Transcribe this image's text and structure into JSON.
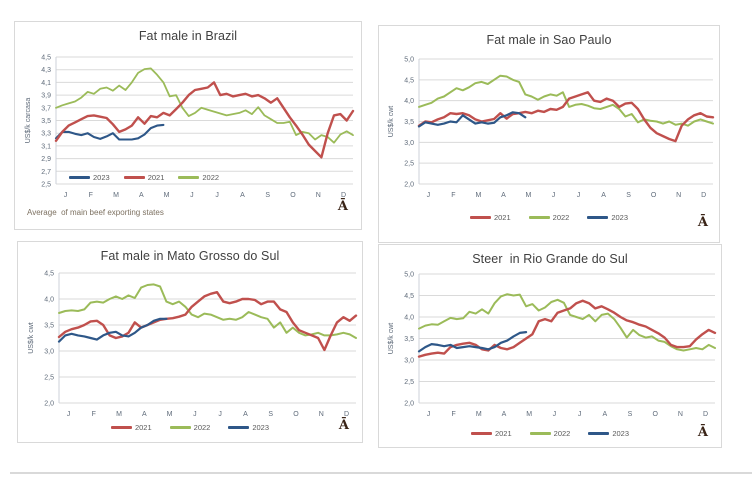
{
  "chart_data": [
    {
      "type": "line",
      "title": "Fat male in Brazil",
      "ylabel": "US$/k carcasa",
      "footnote": "Average  of main beef exporting states",
      "corner_glyph": "Ā",
      "x_categories": [
        "J",
        "F",
        "M",
        "A",
        "M",
        "J",
        "J",
        "A",
        "S",
        "O",
        "N",
        "D"
      ],
      "ylim": [
        2.5,
        4.5
      ],
      "ytick_values": [
        2.5,
        2.7,
        2.9,
        3.1,
        3.3,
        3.5,
        3.7,
        3.9,
        4.1,
        4.3,
        4.5
      ],
      "ytick_labels": [
        "2,5",
        "2,7",
        "2,9",
        "3,1",
        "3,3",
        "3,5",
        "3,7",
        "3,9",
        "4,1",
        "4,3",
        "4,5"
      ],
      "weeks_per_year": 48,
      "legend_position": "inside-bottom-left",
      "draw_order": [
        "2022",
        "2023",
        "2021"
      ],
      "series": [
        {
          "name": "2023",
          "color": "#2e5788",
          "width": 2.1,
          "values": [
            3.22,
            3.32,
            3.32,
            3.29,
            3.27,
            3.3,
            3.24,
            3.21,
            3.25,
            3.3,
            3.2,
            3.2,
            3.2,
            3.22,
            3.28,
            3.38,
            3.42,
            3.43
          ]
        },
        {
          "name": "2021",
          "color": "#c0504d",
          "width": 2.4,
          "values": [
            3.18,
            3.32,
            3.42,
            3.47,
            3.52,
            3.57,
            3.58,
            3.56,
            3.54,
            3.44,
            3.32,
            3.36,
            3.42,
            3.55,
            3.45,
            3.57,
            3.55,
            3.62,
            3.58,
            3.68,
            3.78,
            3.9,
            3.98,
            4.0,
            4.02,
            4.1,
            3.9,
            3.92,
            3.88,
            3.9,
            3.92,
            3.88,
            3.9,
            3.85,
            3.78,
            3.85,
            3.7,
            3.55,
            3.42,
            3.28,
            3.12,
            3.02,
            2.92,
            3.3,
            3.58,
            3.6,
            3.5,
            3.65
          ]
        },
        {
          "name": "2022",
          "color": "#9bbb59",
          "width": 1.8,
          "values": [
            3.7,
            3.74,
            3.77,
            3.8,
            3.86,
            3.95,
            3.92,
            4.0,
            4.02,
            3.97,
            4.05,
            3.98,
            4.1,
            4.25,
            4.31,
            4.32,
            4.22,
            4.1,
            3.88,
            3.9,
            3.7,
            3.57,
            3.62,
            3.7,
            3.67,
            3.64,
            3.61,
            3.58,
            3.6,
            3.62,
            3.66,
            3.6,
            3.71,
            3.58,
            3.52,
            3.46,
            3.46,
            3.48,
            3.27,
            3.32,
            3.3,
            3.2,
            3.27,
            3.24,
            3.15,
            3.28,
            3.33,
            3.27
          ]
        }
      ]
    },
    {
      "type": "line",
      "title": "Fat male in Sao Paulo",
      "ylabel": "US$/k cwt",
      "corner_glyph": "Ā",
      "x_categories": [
        "J",
        "F",
        "M",
        "A",
        "M",
        "J",
        "J",
        "A",
        "S",
        "O",
        "N",
        "D"
      ],
      "ylim": [
        2.0,
        5.0
      ],
      "ytick_values": [
        2.0,
        2.5,
        3.0,
        3.5,
        4.0,
        4.5,
        5.0
      ],
      "ytick_labels": [
        "2,0",
        "2,5",
        "3,0",
        "3,5",
        "4,0",
        "4,5",
        "5,0"
      ],
      "weeks_per_year": 48,
      "legend_position": "below-center",
      "draw_order": [
        "2022",
        "2021",
        "2023"
      ],
      "series": [
        {
          "name": "2021",
          "color": "#c0504d",
          "width": 2.4,
          "values": [
            3.4,
            3.5,
            3.48,
            3.55,
            3.6,
            3.7,
            3.68,
            3.7,
            3.65,
            3.55,
            3.5,
            3.53,
            3.56,
            3.7,
            3.57,
            3.68,
            3.7,
            3.73,
            3.7,
            3.76,
            3.73,
            3.8,
            3.78,
            3.85,
            4.05,
            4.1,
            4.15,
            4.2,
            4.0,
            3.97,
            4.05,
            4.0,
            3.85,
            3.93,
            3.95,
            3.8,
            3.55,
            3.35,
            3.22,
            3.15,
            3.08,
            3.03,
            3.4,
            3.55,
            3.65,
            3.7,
            3.62,
            3.6
          ]
        },
        {
          "name": "2022",
          "color": "#9bbb59",
          "width": 2.0,
          "values": [
            3.85,
            3.9,
            3.95,
            4.05,
            4.1,
            4.2,
            4.3,
            4.25,
            4.32,
            4.42,
            4.45,
            4.4,
            4.5,
            4.6,
            4.58,
            4.5,
            4.45,
            4.15,
            4.1,
            4.02,
            4.1,
            4.15,
            4.12,
            4.2,
            3.85,
            3.9,
            3.92,
            3.88,
            3.82,
            3.8,
            3.85,
            3.9,
            3.8,
            3.62,
            3.68,
            3.48,
            3.55,
            3.52,
            3.5,
            3.45,
            3.5,
            3.42,
            3.45,
            3.4,
            3.5,
            3.55,
            3.5,
            3.45
          ]
        },
        {
          "name": "2023",
          "color": "#2e5788",
          "width": 2.2,
          "values": [
            3.38,
            3.48,
            3.45,
            3.42,
            3.45,
            3.5,
            3.48,
            3.65,
            3.55,
            3.45,
            3.48,
            3.45,
            3.47,
            3.6,
            3.65,
            3.72,
            3.7,
            3.6
          ]
        }
      ]
    },
    {
      "type": "line",
      "title": "Fat male in Mato Grosso do Sul",
      "ylabel": "US$/k cwt",
      "corner_glyph": "Ā",
      "x_categories": [
        "J",
        "F",
        "M",
        "A",
        "M",
        "J",
        "J",
        "A",
        "S",
        "O",
        "N",
        "D"
      ],
      "ylim": [
        2.0,
        4.5
      ],
      "ytick_values": [
        2.0,
        2.5,
        3.0,
        3.5,
        4.0,
        4.5
      ],
      "ytick_labels": [
        "2,0",
        "2,5",
        "3,0",
        "3,5",
        "4,0",
        "4,5"
      ],
      "weeks_per_year": 48,
      "legend_position": "below-center",
      "draw_order": [
        "2022",
        "2021",
        "2023"
      ],
      "series": [
        {
          "name": "2021",
          "color": "#c0504d",
          "width": 2.4,
          "values": [
            3.27,
            3.37,
            3.42,
            3.45,
            3.5,
            3.57,
            3.58,
            3.5,
            3.3,
            3.25,
            3.28,
            3.35,
            3.55,
            3.45,
            3.5,
            3.55,
            3.6,
            3.62,
            3.63,
            3.66,
            3.7,
            3.85,
            3.95,
            4.05,
            4.1,
            4.13,
            3.95,
            3.92,
            3.95,
            4.0,
            4.0,
            3.98,
            3.9,
            3.95,
            3.95,
            3.8,
            3.75,
            3.55,
            3.4,
            3.35,
            3.3,
            3.25,
            3.02,
            3.3,
            3.55,
            3.65,
            3.58,
            3.68
          ]
        },
        {
          "name": "2022",
          "color": "#9bbb59",
          "width": 2.0,
          "values": [
            3.73,
            3.77,
            3.78,
            3.77,
            3.8,
            3.93,
            3.95,
            3.93,
            4.0,
            4.05,
            4.0,
            4.07,
            4.02,
            4.22,
            4.27,
            4.28,
            4.24,
            3.95,
            3.9,
            3.95,
            3.85,
            3.7,
            3.65,
            3.72,
            3.7,
            3.65,
            3.6,
            3.62,
            3.6,
            3.65,
            3.75,
            3.7,
            3.65,
            3.62,
            3.45,
            3.55,
            3.35,
            3.45,
            3.35,
            3.3,
            3.32,
            3.35,
            3.3,
            3.3,
            3.32,
            3.35,
            3.32,
            3.25
          ]
        },
        {
          "name": "2023",
          "color": "#2e5788",
          "width": 2.2,
          "values": [
            3.18,
            3.3,
            3.33,
            3.3,
            3.28,
            3.25,
            3.22,
            3.3,
            3.35,
            3.37,
            3.3,
            3.28,
            3.35,
            3.45,
            3.5,
            3.58,
            3.62,
            3.62
          ]
        }
      ]
    },
    {
      "type": "line",
      "title": "Steer  in Rio Grande do Sul",
      "ylabel": "US$/k cwt",
      "corner_glyph": "Ā",
      "x_categories": [
        "J",
        "F",
        "M",
        "A",
        "M",
        "J",
        "J",
        "A",
        "S",
        "O",
        "N",
        "D"
      ],
      "ylim": [
        2.0,
        5.0
      ],
      "ytick_values": [
        2.0,
        2.5,
        3.0,
        3.5,
        4.0,
        4.5,
        5.0
      ],
      "ytick_labels": [
        "2,0",
        "2,5",
        "3,0",
        "3,5",
        "4,0",
        "4,5",
        "5,0"
      ],
      "weeks_per_year": 48,
      "legend_position": "below-center",
      "draw_order": [
        "2022",
        "2021",
        "2023"
      ],
      "series": [
        {
          "name": "2021",
          "color": "#c0504d",
          "width": 2.4,
          "values": [
            3.08,
            3.12,
            3.15,
            3.17,
            3.15,
            3.3,
            3.35,
            3.38,
            3.4,
            3.35,
            3.25,
            3.22,
            3.35,
            3.28,
            3.25,
            3.3,
            3.4,
            3.5,
            3.6,
            3.9,
            3.95,
            3.9,
            4.1,
            4.15,
            4.2,
            4.32,
            4.38,
            4.32,
            4.2,
            4.25,
            4.18,
            4.1,
            4.0,
            3.92,
            3.88,
            3.82,
            3.78,
            3.7,
            3.62,
            3.52,
            3.35,
            3.3,
            3.3,
            3.32,
            3.48,
            3.6,
            3.7,
            3.63
          ]
        },
        {
          "name": "2022",
          "color": "#9bbb59",
          "width": 2.0,
          "values": [
            3.73,
            3.8,
            3.83,
            3.82,
            3.9,
            3.98,
            3.95,
            3.97,
            4.12,
            4.08,
            4.18,
            4.08,
            4.32,
            4.48,
            4.53,
            4.5,
            4.52,
            4.25,
            4.3,
            4.15,
            4.22,
            4.35,
            4.4,
            4.33,
            4.05,
            4.0,
            3.95,
            4.05,
            3.9,
            4.05,
            4.08,
            3.95,
            3.75,
            3.52,
            3.7,
            3.58,
            3.52,
            3.55,
            3.45,
            3.42,
            3.32,
            3.25,
            3.22,
            3.25,
            3.28,
            3.25,
            3.35,
            3.28
          ]
        },
        {
          "name": "2023",
          "color": "#2e5788",
          "width": 2.2,
          "values": [
            3.2,
            3.3,
            3.37,
            3.35,
            3.32,
            3.35,
            3.28,
            3.3,
            3.32,
            3.3,
            3.28,
            3.25,
            3.3,
            3.4,
            3.45,
            3.55,
            3.63,
            3.65
          ]
        }
      ]
    }
  ]
}
